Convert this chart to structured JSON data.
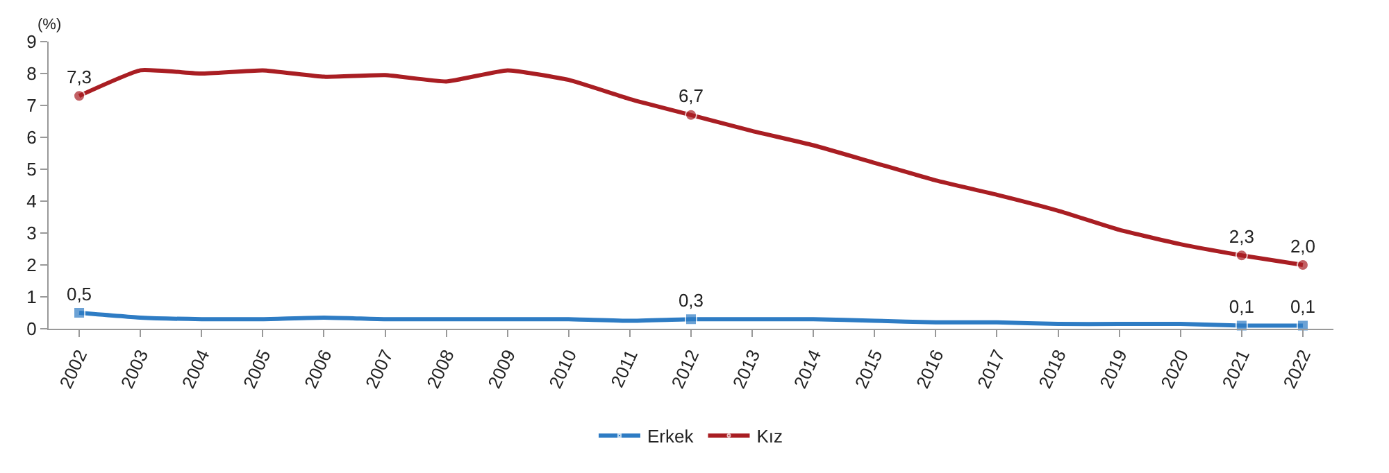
{
  "chart_data": {
    "type": "line",
    "ylabel": "(%)",
    "categories": [
      "2002",
      "2003",
      "2004",
      "2005",
      "2006",
      "2007",
      "2008",
      "2009",
      "2010",
      "2011",
      "2012",
      "2013",
      "2014",
      "2015",
      "2016",
      "2017",
      "2018",
      "2019",
      "2020",
      "2021",
      "2022"
    ],
    "series": [
      {
        "name": "Erkek",
        "color": "#2e7cc4",
        "values": [
          0.5,
          0.35,
          0.3,
          0.3,
          0.35,
          0.3,
          0.3,
          0.3,
          0.3,
          0.25,
          0.3,
          0.3,
          0.3,
          0.25,
          0.2,
          0.2,
          0.15,
          0.15,
          0.15,
          0.1,
          0.1
        ],
        "value_labels": [
          "0,5",
          null,
          null,
          null,
          null,
          null,
          null,
          null,
          null,
          null,
          "0,3",
          null,
          null,
          null,
          null,
          null,
          null,
          null,
          null,
          "0,1",
          "0,1"
        ]
      },
      {
        "name": "Kız",
        "color": "#a91e23",
        "values": [
          7.3,
          8.1,
          8.0,
          8.1,
          7.9,
          7.95,
          7.75,
          8.1,
          7.8,
          7.2,
          6.7,
          6.2,
          5.75,
          5.2,
          4.65,
          4.2,
          3.7,
          3.1,
          2.65,
          2.3,
          2.0
        ],
        "value_labels": [
          "7,3",
          null,
          null,
          null,
          null,
          null,
          null,
          null,
          null,
          null,
          "6,7",
          null,
          null,
          null,
          null,
          null,
          null,
          null,
          null,
          "2,3",
          "2,0"
        ]
      }
    ],
    "ylim": [
      0,
      9
    ],
    "yticks": [
      0,
      1,
      2,
      3,
      4,
      5,
      6,
      7,
      8,
      9
    ],
    "legend": "bottom",
    "line_style": "solid"
  }
}
